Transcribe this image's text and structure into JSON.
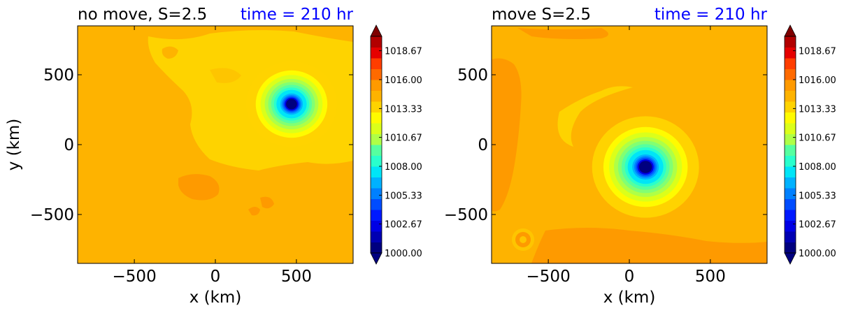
{
  "chart_data": [
    {
      "type": "heatmap",
      "title": "no move, S=2.5",
      "time_label": "time = 210 hr",
      "xlabel": "x (km)",
      "ylabel": "y (km)",
      "xlim": [
        -850,
        850
      ],
      "ylim": [
        -850,
        850
      ],
      "xticks": [
        -500,
        0,
        500
      ],
      "yticks": [
        -500,
        0,
        500
      ],
      "xtick_labels": [
        "−500",
        "0",
        "500"
      ],
      "ytick_labels": [
        "−500",
        "0",
        "500"
      ],
      "vortex_center": [
        470,
        290
      ],
      "vortex_min_pressure": 1000.0,
      "background_pressure": 1015.3,
      "colorbar_ticks": [
        "1018.67",
        "1016.00",
        "1013.33",
        "1010.67",
        "1008.00",
        "1005.33",
        "1002.67",
        "1000.00"
      ],
      "colorbar_range": [
        1000.0,
        1020.0
      ]
    },
    {
      "type": "heatmap",
      "title": "move S=2.5",
      "time_label": "time = 210 hr",
      "xlabel": "x (km)",
      "ylabel": "",
      "xlim": [
        -850,
        850
      ],
      "ylim": [
        -850,
        850
      ],
      "xticks": [
        -500,
        0,
        500
      ],
      "yticks": [
        -500,
        0,
        500
      ],
      "xtick_labels": [
        "−500",
        "0",
        "500"
      ],
      "ytick_labels": [
        "−500",
        "0",
        "500"
      ],
      "vortex_center": [
        100,
        -160
      ],
      "vortex_min_pressure": 1000.0,
      "background_pressure": 1015.3,
      "colorbar_ticks": [
        "1018.67",
        "1016.00",
        "1013.33",
        "1010.67",
        "1008.00",
        "1005.33",
        "1002.67",
        "1000.00"
      ],
      "colorbar_range": [
        1000.0,
        1020.0
      ]
    }
  ],
  "colors": {
    "background_field": "#FEB700",
    "title_color": "#000000",
    "time_color": "#0000FF"
  }
}
